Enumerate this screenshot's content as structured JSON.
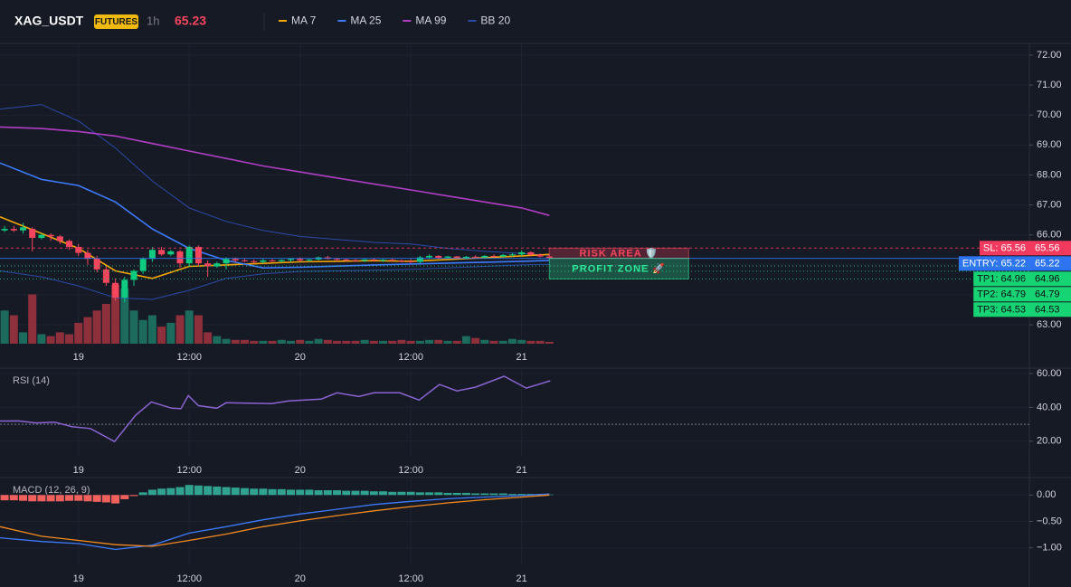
{
  "header": {
    "symbol": "XAG_USDT",
    "badge": "FUTURES",
    "interval": "1h",
    "price": 65.23
  },
  "chart_data": [
    {
      "type": "candlestick",
      "xlim": [
        -8.5,
        103
      ],
      "xticks": [
        {
          "value": 0,
          "label": "19"
        },
        {
          "value": 12,
          "label": "12:00"
        },
        {
          "value": 24,
          "label": "20"
        },
        {
          "value": 36,
          "label": "12:00"
        },
        {
          "value": 48,
          "label": "21"
        }
      ],
      "ylim": [
        62.37,
        72.39
      ],
      "yticks": [
        {
          "value": 63,
          "label": "63.00"
        },
        {
          "value": 64,
          "label": "64.00"
        },
        {
          "value": 65,
          "label": "65.00"
        },
        {
          "value": 66,
          "label": "66.00"
        },
        {
          "value": 67,
          "label": "67.00"
        },
        {
          "value": 68,
          "label": "68.00"
        },
        {
          "value": 69,
          "label": "69.00"
        },
        {
          "value": 70,
          "label": "70.00"
        },
        {
          "value": 71,
          "label": "71.00"
        },
        {
          "value": 72,
          "label": "72.00"
        }
      ],
      "grid": true,
      "up_color": "#0ecb81",
      "down_color": "#f6465d",
      "volume_up_color": "#1c6b5c",
      "volume_down_color": "#8e2f3c",
      "x": [
        -8,
        -7,
        -6,
        -5,
        -4,
        -3,
        -2,
        -1,
        0,
        1,
        2,
        3,
        4,
        5,
        6,
        7,
        8,
        9,
        10,
        11,
        12,
        13,
        14,
        15,
        16,
        17,
        18,
        19,
        20,
        21,
        22,
        23,
        24,
        25,
        26,
        27,
        28,
        29,
        30,
        31,
        32,
        33,
        34,
        35,
        36,
        37,
        38,
        39,
        40,
        41,
        42,
        43,
        44,
        45,
        46,
        47,
        48,
        49,
        50,
        51
      ],
      "ohlc": [
        [
          66.15,
          66.3,
          66.1,
          66.2
        ],
        [
          66.2,
          66.3,
          66.1,
          66.15
        ],
        [
          66.15,
          66.4,
          66.05,
          66.25
        ],
        [
          66.2,
          66.25,
          65.45,
          65.9
        ],
        [
          65.9,
          66.05,
          65.85,
          66.0
        ],
        [
          66.0,
          66.05,
          65.8,
          65.95
        ],
        [
          65.95,
          66.0,
          65.7,
          65.8
        ],
        [
          65.8,
          65.85,
          65.5,
          65.6
        ],
        [
          65.6,
          65.7,
          65.3,
          65.4
        ],
        [
          65.4,
          65.5,
          65.0,
          65.2
        ],
        [
          65.2,
          65.3,
          64.75,
          64.85
        ],
        [
          64.85,
          64.95,
          64.3,
          64.4
        ],
        [
          64.4,
          64.55,
          63.8,
          63.9
        ],
        [
          63.9,
          64.6,
          63.75,
          64.5
        ],
        [
          64.5,
          64.85,
          64.3,
          64.8
        ],
        [
          64.8,
          65.25,
          64.7,
          65.2
        ],
        [
          65.2,
          65.6,
          65.1,
          65.5
        ],
        [
          65.5,
          65.6,
          65.3,
          65.35
        ],
        [
          65.35,
          65.5,
          65.3,
          65.45
        ],
        [
          65.45,
          65.5,
          64.9,
          65.05
        ],
        [
          65.05,
          65.65,
          64.95,
          65.6
        ],
        [
          65.6,
          65.65,
          64.95,
          65.05
        ],
        [
          65.05,
          65.15,
          64.6,
          64.95
        ],
        [
          64.95,
          65.1,
          64.9,
          65.05
        ],
        [
          65.05,
          65.25,
          64.85,
          65.2
        ],
        [
          65.2,
          65.25,
          65.1,
          65.15
        ],
        [
          65.15,
          65.2,
          65.1,
          65.12
        ],
        [
          65.12,
          65.18,
          65.05,
          65.1
        ],
        [
          65.1,
          65.2,
          65.05,
          65.15
        ],
        [
          65.15,
          65.2,
          65.1,
          65.12
        ],
        [
          65.12,
          65.18,
          65.08,
          65.16
        ],
        [
          65.16,
          65.22,
          65.1,
          65.2
        ],
        [
          65.2,
          65.25,
          65.12,
          65.15
        ],
        [
          65.15,
          65.2,
          65.1,
          65.18
        ],
        [
          65.18,
          65.28,
          65.15,
          65.25
        ],
        [
          65.25,
          65.3,
          65.18,
          65.2
        ],
        [
          65.2,
          65.24,
          65.12,
          65.18
        ],
        [
          65.18,
          65.22,
          65.12,
          65.16
        ],
        [
          65.16,
          65.2,
          65.1,
          65.14
        ],
        [
          65.14,
          65.2,
          65.1,
          65.18
        ],
        [
          65.18,
          65.22,
          65.12,
          65.15
        ],
        [
          65.15,
          65.2,
          65.1,
          65.17
        ],
        [
          65.17,
          65.22,
          65.12,
          65.14
        ],
        [
          65.14,
          65.18,
          65.08,
          65.12
        ],
        [
          65.12,
          65.2,
          65.05,
          65.1
        ],
        [
          65.1,
          65.3,
          65.05,
          65.25
        ],
        [
          65.25,
          65.35,
          65.2,
          65.3
        ],
        [
          65.3,
          65.32,
          65.2,
          65.24
        ],
        [
          65.24,
          65.3,
          65.2,
          65.28
        ],
        [
          65.28,
          65.3,
          65.2,
          65.22
        ],
        [
          65.22,
          65.3,
          65.18,
          65.27
        ],
        [
          65.27,
          65.32,
          65.22,
          65.25
        ],
        [
          65.25,
          65.33,
          65.2,
          65.3
        ],
        [
          65.3,
          65.35,
          65.25,
          65.28
        ],
        [
          65.28,
          65.36,
          65.25,
          65.33
        ],
        [
          65.33,
          65.4,
          65.28,
          65.35
        ],
        [
          65.35,
          65.48,
          65.3,
          65.42
        ],
        [
          65.42,
          65.45,
          65.3,
          65.34
        ],
        [
          65.34,
          65.38,
          65.25,
          65.28
        ],
        [
          65.28,
          65.32,
          65.2,
          65.23
        ]
      ],
      "volume": [
        35,
        30,
        12,
        52,
        10,
        8,
        12,
        10,
        22,
        28,
        35,
        42,
        62,
        58,
        35,
        25,
        30,
        18,
        22,
        30,
        35,
        30,
        12,
        8,
        5,
        4,
        4,
        3,
        3,
        3,
        4,
        3,
        4,
        3,
        5,
        4,
        3,
        3,
        3,
        4,
        3,
        3,
        3,
        4,
        3,
        3,
        4,
        4,
        3,
        3,
        8,
        6,
        4,
        3,
        3,
        5,
        4,
        3,
        3,
        2
      ],
      "overlays": {
        "x": [
          -8.5,
          -4,
          0,
          4,
          8,
          12,
          16,
          20,
          24,
          28,
          32,
          36,
          40,
          44,
          48,
          51
        ],
        "series": [
          {
            "name": "MA 7",
            "color": "#f7a600",
            "values": [
              66.6,
              66.05,
              65.55,
              64.8,
              64.55,
              64.95,
              65.0,
              65.05,
              65.1,
              65.12,
              65.14,
              65.12,
              65.18,
              65.24,
              65.3,
              65.35
            ]
          },
          {
            "name": "MA 25",
            "color": "#3d7bfd",
            "values": [
              68.4,
              67.85,
              67.65,
              67.1,
              66.2,
              65.55,
              65.15,
              64.9,
              64.92,
              64.96,
              65.0,
              65.03,
              65.06,
              65.09,
              65.12,
              65.15
            ]
          },
          {
            "name": "MA 99",
            "color": "#b03ec5",
            "values": [
              69.6,
              69.55,
              69.45,
              69.3,
              69.05,
              68.8,
              68.55,
              68.3,
              68.1,
              67.9,
              67.7,
              67.5,
              67.3,
              67.1,
              66.9,
              66.65
            ]
          }
        ],
        "bands": {
          "name": "BB 20",
          "color": "#2b4aa8",
          "upper": [
            70.2,
            70.35,
            69.8,
            68.9,
            67.8,
            66.9,
            66.45,
            66.15,
            65.95,
            65.85,
            65.75,
            65.7,
            65.55,
            65.45,
            65.38,
            65.32
          ],
          "lower": [
            64.8,
            64.6,
            64.3,
            63.9,
            63.85,
            64.15,
            64.55,
            64.7,
            64.78,
            64.8,
            64.82,
            64.85,
            64.9,
            64.95,
            65.0,
            65.02
          ]
        }
      },
      "levels": [
        {
          "label": "SL: 65.56",
          "value": 65.56,
          "color": "#f23a5f",
          "style": "dashed"
        },
        {
          "label": "ENTRY: 65.22",
          "value": 65.22,
          "color": "#2e74f0",
          "style": "solid"
        },
        {
          "label": "TP1: 64.96",
          "value": 64.96,
          "color": "#16d374",
          "style": "dotted"
        },
        {
          "label": "TP2: 64.79",
          "value": 64.79,
          "color": "#16d374",
          "style": "dotted"
        },
        {
          "label": "TP3: 64.53",
          "value": 64.53,
          "color": "#16d374",
          "style": "dotted"
        }
      ],
      "zones": [
        {
          "label": "RISK AREA 🛡️",
          "from": 65.56,
          "to": 65.22,
          "color": "#f6465d"
        },
        {
          "label": "PROFIT ZONE 🚀",
          "from": 65.22,
          "to": 64.53,
          "color": "#2ee89a"
        }
      ]
    },
    {
      "type": "line",
      "title": "RSI (14)",
      "xlim": [
        -8.5,
        103
      ],
      "xticks": [
        {
          "value": 0,
          "label": "19"
        },
        {
          "value": 12,
          "label": "12:00"
        },
        {
          "value": 24,
          "label": "20"
        },
        {
          "value": 36,
          "label": "12:00"
        },
        {
          "value": 48,
          "label": "21"
        }
      ],
      "ylim": [
        10.8,
        63.2
      ],
      "yticks": [
        {
          "value": 20,
          "label": "20.00"
        },
        {
          "value": 40,
          "label": "40.00"
        },
        {
          "value": 60,
          "label": "60.00"
        }
      ],
      "grid": true,
      "reference": 30,
      "color": "#8a63d2",
      "x": [
        -8.5,
        -6.5,
        -4.6,
        -2.6,
        -0.7,
        1.3,
        3.9,
        6.2,
        7.9,
        10.1,
        11.1,
        11.9,
        13.0,
        15.0,
        16.0,
        20.9,
        22.8,
        26.3,
        28.0,
        30.4,
        32.0,
        34.8,
        36.9,
        39.1,
        41.0,
        43.0,
        46.1,
        48.5,
        51.1
      ],
      "values": [
        31.9,
        32.0,
        30.8,
        31.3,
        28.6,
        27.5,
        19.8,
        35.4,
        43.2,
        39.5,
        39.2,
        47.0,
        41.0,
        39.5,
        42.7,
        42.2,
        43.8,
        44.9,
        48.6,
        46.4,
        48.6,
        48.6,
        44.3,
        53.5,
        49.7,
        51.9,
        58.4,
        51.4,
        55.7
      ]
    },
    {
      "type": "macd",
      "title": "MACD (12, 26, 9)",
      "xlim": [
        -8.5,
        103
      ],
      "xticks": [
        {
          "value": 0,
          "label": "19"
        },
        {
          "value": 12,
          "label": "12:00"
        },
        {
          "value": 24,
          "label": "20"
        },
        {
          "value": 36,
          "label": "12:00"
        },
        {
          "value": 48,
          "label": "21"
        }
      ],
      "ylim": [
        -1.33,
        0.33
      ],
      "yticks": [
        {
          "value": 0,
          "label": "0.00"
        },
        {
          "value": -0.5,
          "label": "−0.50"
        },
        {
          "value": -1,
          "label": "−1.00"
        }
      ],
      "grid": true,
      "x": [
        -8,
        -7,
        -6,
        -5,
        -4,
        -3,
        -2,
        -1,
        0,
        1,
        2,
        3,
        4,
        5,
        6,
        7,
        8,
        9,
        10,
        11,
        12,
        13,
        14,
        15,
        16,
        17,
        18,
        19,
        20,
        21,
        22,
        23,
        24,
        25,
        26,
        27,
        28,
        29,
        30,
        31,
        32,
        33,
        34,
        35,
        36,
        37,
        38,
        39,
        40,
        41,
        42,
        43,
        44,
        45,
        46,
        47,
        48,
        49,
        50,
        51
      ],
      "histogram": [
        -0.1,
        -0.1,
        -0.11,
        -0.12,
        -0.12,
        -0.12,
        -0.12,
        -0.11,
        -0.11,
        -0.12,
        -0.13,
        -0.14,
        -0.16,
        -0.08,
        -0.02,
        0.05,
        0.1,
        0.12,
        0.13,
        0.15,
        0.19,
        0.18,
        0.17,
        0.16,
        0.15,
        0.14,
        0.13,
        0.12,
        0.12,
        0.11,
        0.11,
        0.1,
        0.1,
        0.1,
        0.09,
        0.09,
        0.09,
        0.08,
        0.08,
        0.08,
        0.07,
        0.07,
        0.06,
        0.06,
        0.06,
        0.05,
        0.05,
        0.05,
        0.04,
        0.04,
        0.04,
        0.03,
        0.03,
        0.03,
        0.03,
        0.02,
        0.02,
        0.02,
        0.02,
        0.01
      ],
      "hist_up_color": "#2fa38f",
      "hist_down_color": "#f0605d",
      "line_x": [
        -8.5,
        -4,
        0,
        4,
        8,
        12,
        16,
        20,
        24,
        28,
        32,
        36,
        40,
        44,
        48,
        51
      ],
      "macd": [
        -0.81,
        -0.88,
        -0.92,
        -1.03,
        -0.95,
        -0.72,
        -0.6,
        -0.47,
        -0.36,
        -0.27,
        -0.18,
        -0.12,
        -0.07,
        -0.04,
        -0.01,
        0.02
      ],
      "signal": [
        -0.6,
        -0.78,
        -0.86,
        -0.94,
        -0.97,
        -0.86,
        -0.74,
        -0.6,
        -0.49,
        -0.39,
        -0.3,
        -0.22,
        -0.15,
        -0.09,
        -0.04,
        0.0
      ],
      "macd_color": "#3d7bfd",
      "signal_color": "#f58a1f"
    }
  ]
}
